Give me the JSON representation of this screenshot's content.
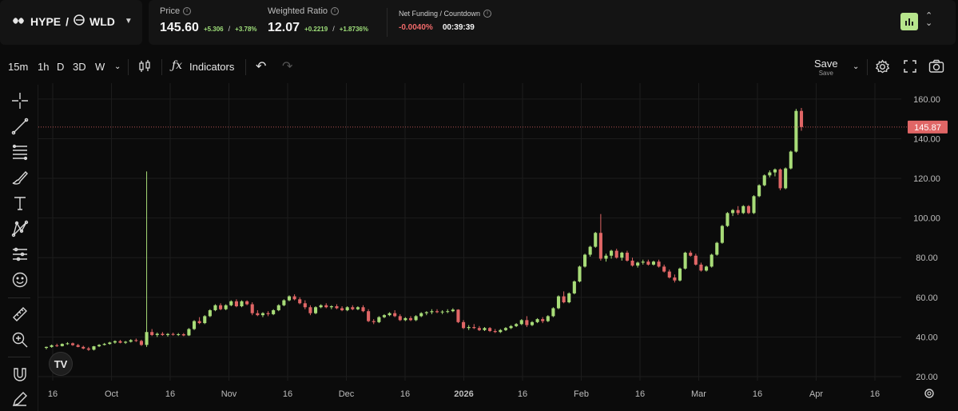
{
  "header": {
    "base": "HYPE",
    "separator": "/",
    "quote": "WLD",
    "price": {
      "label": "Price",
      "value": "145.60",
      "change_abs": "+5.306",
      "change_pct": "+3.78%"
    },
    "weighted": {
      "label": "Weighted Ratio",
      "value": "12.07",
      "change_abs": "+0.2219",
      "change_pct": "+1.8736%"
    },
    "funding": {
      "label": "Net Funding / Countdown",
      "rate": "-0.0040%",
      "countdown": "00:39:39"
    },
    "slash": "/"
  },
  "toolbar": {
    "intervals": [
      "15m",
      "1h",
      "D",
      "3D",
      "W"
    ],
    "indicators_label": "Indicators",
    "save_label": "Save",
    "save_sub": "Save"
  },
  "tv_logo": "TV",
  "colors": {
    "up": "#a8dc78",
    "down": "#e06666",
    "accent": "#b7e58c",
    "bg": "#0b0b0b",
    "grid": "#1c1c1c"
  },
  "chart_data": {
    "type": "candlestick",
    "last_price_label": "145.87",
    "last_price": 145.87,
    "y_ticks": [
      20,
      40,
      60,
      80,
      100,
      120,
      140,
      160
    ],
    "y_tick_labels": [
      "20.00",
      "40.00",
      "60.00",
      "80.00",
      "100.00",
      "120.00",
      "140.00",
      "160.00"
    ],
    "ylim": [
      18,
      168
    ],
    "x_labels": [
      "16",
      "Oct",
      "16",
      "Nov",
      "16",
      "Dec",
      "16",
      "2026",
      "16",
      "Feb",
      "16",
      "Mar",
      "16",
      "Apr",
      "16"
    ],
    "x_label_bold": [
      false,
      false,
      false,
      false,
      false,
      false,
      false,
      true,
      false,
      false,
      false,
      false,
      false,
      false,
      false
    ],
    "series": [
      [
        34.5,
        35.2,
        33.8,
        35.0
      ],
      [
        35.0,
        36.2,
        34.6,
        35.8
      ],
      [
        35.8,
        36.6,
        35.0,
        35.4
      ],
      [
        35.4,
        36.8,
        35.2,
        36.5
      ],
      [
        36.5,
        37.4,
        36.0,
        36.8
      ],
      [
        36.8,
        37.2,
        35.5,
        35.9
      ],
      [
        35.9,
        36.5,
        34.8,
        35.0
      ],
      [
        35.0,
        35.6,
        33.8,
        34.2
      ],
      [
        34.2,
        35.0,
        33.0,
        33.6
      ],
      [
        33.6,
        35.5,
        33.2,
        35.3
      ],
      [
        35.3,
        36.4,
        34.9,
        36.0
      ],
      [
        36.0,
        37.0,
        35.7,
        36.5
      ],
      [
        36.5,
        37.6,
        36.1,
        37.2
      ],
      [
        37.2,
        38.3,
        36.6,
        37.9
      ],
      [
        37.9,
        38.5,
        36.8,
        37.1
      ],
      [
        37.1,
        38.0,
        36.5,
        37.6
      ],
      [
        37.6,
        38.9,
        37.2,
        38.4
      ],
      [
        38.4,
        39.2,
        37.5,
        38.0
      ],
      [
        38.0,
        38.6,
        35.5,
        36.0
      ],
      [
        36.0,
        123.5,
        35.0,
        42.5
      ],
      [
        42.5,
        44.0,
        40.5,
        41.0
      ],
      [
        41.0,
        42.3,
        40.0,
        41.6
      ],
      [
        41.6,
        42.5,
        40.6,
        41.0
      ],
      [
        41.0,
        42.0,
        40.2,
        41.5
      ],
      [
        41.5,
        42.2,
        40.7,
        41.2
      ],
      [
        41.2,
        42.0,
        40.5,
        41.4
      ],
      [
        41.4,
        42.0,
        40.4,
        40.8
      ],
      [
        40.8,
        44.5,
        40.5,
        44.0
      ],
      [
        44.0,
        48.5,
        43.5,
        48.0
      ],
      [
        48.0,
        50.0,
        46.5,
        47.0
      ],
      [
        47.0,
        51.0,
        46.5,
        50.5
      ],
      [
        50.5,
        54.0,
        50.0,
        53.5
      ],
      [
        53.5,
        56.5,
        53.0,
        56.0
      ],
      [
        56.0,
        57.0,
        53.5,
        54.0
      ],
      [
        54.0,
        56.5,
        53.5,
        56.0
      ],
      [
        56.0,
        58.5,
        55.5,
        58.0
      ],
      [
        58.0,
        59.0,
        55.0,
        55.5
      ],
      [
        55.5,
        58.5,
        55.0,
        58.0
      ],
      [
        58.0,
        58.5,
        56.0,
        56.5
      ],
      [
        56.5,
        57.5,
        51.0,
        52.0
      ],
      [
        52.0,
        53.5,
        50.5,
        51.0
      ],
      [
        51.0,
        52.5,
        50.0,
        52.0
      ],
      [
        52.0,
        53.0,
        50.5,
        51.5
      ],
      [
        51.5,
        54.0,
        51.0,
        53.5
      ],
      [
        53.5,
        56.5,
        53.0,
        56.0
      ],
      [
        56.0,
        59.0,
        55.5,
        58.5
      ],
      [
        58.5,
        61.0,
        58.0,
        60.5
      ],
      [
        60.5,
        61.5,
        58.5,
        59.0
      ],
      [
        59.0,
        60.0,
        56.5,
        57.0
      ],
      [
        57.0,
        58.5,
        54.0,
        55.0
      ],
      [
        55.0,
        56.0,
        51.0,
        52.0
      ],
      [
        52.0,
        55.5,
        51.5,
        55.0
      ],
      [
        55.0,
        56.5,
        54.5,
        56.0
      ],
      [
        56.0,
        57.0,
        54.5,
        55.0
      ],
      [
        55.0,
        56.0,
        54.0,
        55.5
      ],
      [
        55.5,
        56.5,
        54.0,
        54.5
      ],
      [
        54.5,
        55.5,
        53.0,
        53.5
      ],
      [
        53.5,
        55.5,
        53.0,
        55.0
      ],
      [
        55.0,
        56.0,
        53.5,
        54.0
      ],
      [
        54.0,
        55.5,
        53.5,
        55.0
      ],
      [
        55.0,
        56.0,
        52.5,
        53.0
      ],
      [
        53.0,
        54.0,
        47.5,
        48.0
      ],
      [
        48.0,
        49.0,
        46.5,
        47.5
      ],
      [
        47.5,
        50.5,
        47.0,
        50.0
      ],
      [
        50.0,
        51.5,
        49.5,
        51.0
      ],
      [
        51.0,
        52.5,
        50.5,
        52.0
      ],
      [
        52.0,
        53.5,
        50.0,
        50.5
      ],
      [
        50.5,
        51.5,
        48.0,
        48.5
      ],
      [
        48.5,
        50.0,
        48.0,
        49.5
      ],
      [
        49.5,
        50.5,
        48.0,
        48.5
      ],
      [
        48.5,
        51.0,
        48.0,
        50.5
      ],
      [
        50.5,
        52.5,
        50.0,
        52.0
      ],
      [
        52.0,
        53.0,
        51.0,
        52.5
      ],
      [
        52.5,
        54.0,
        51.5,
        53.0
      ],
      [
        53.0,
        54.0,
        52.0,
        52.5
      ],
      [
        52.5,
        53.5,
        51.5,
        52.8
      ],
      [
        52.8,
        54.0,
        52.0,
        53.0
      ],
      [
        53.0,
        54.5,
        52.5,
        53.8
      ],
      [
        53.8,
        54.0,
        47.0,
        47.5
      ],
      [
        47.5,
        48.5,
        44.0,
        44.5
      ],
      [
        44.5,
        46.0,
        43.5,
        45.0
      ],
      [
        45.0,
        46.5,
        44.0,
        44.5
      ],
      [
        44.5,
        45.5,
        43.0,
        43.5
      ],
      [
        43.5,
        45.0,
        43.0,
        44.5
      ],
      [
        44.5,
        45.0,
        42.5,
        43.0
      ],
      [
        43.0,
        44.0,
        42.0,
        42.5
      ],
      [
        42.5,
        44.0,
        42.0,
        43.5
      ],
      [
        43.5,
        45.0,
        43.0,
        44.5
      ],
      [
        44.5,
        46.0,
        44.0,
        45.5
      ],
      [
        45.5,
        47.0,
        45.0,
        46.5
      ],
      [
        46.5,
        49.0,
        46.0,
        48.5
      ],
      [
        48.5,
        50.5,
        45.0,
        46.0
      ],
      [
        46.0,
        48.0,
        45.5,
        47.5
      ],
      [
        47.5,
        49.5,
        47.0,
        49.0
      ],
      [
        49.0,
        50.0,
        47.0,
        48.0
      ],
      [
        48.0,
        51.0,
        47.5,
        50.5
      ],
      [
        50.5,
        55.0,
        50.0,
        54.5
      ],
      [
        54.5,
        61.0,
        54.0,
        60.5
      ],
      [
        60.5,
        63.0,
        57.0,
        57.5
      ],
      [
        57.5,
        62.5,
        57.0,
        62.0
      ],
      [
        62.0,
        68.5,
        61.5,
        68.0
      ],
      [
        68.0,
        76.0,
        67.5,
        75.5
      ],
      [
        75.5,
        82.0,
        75.0,
        81.5
      ],
      [
        81.5,
        86.0,
        80.5,
        85.5
      ],
      [
        85.5,
        93.0,
        85.0,
        92.5
      ],
      [
        92.5,
        102.0,
        78.5,
        79.5
      ],
      [
        79.5,
        82.0,
        78.0,
        81.0
      ],
      [
        81.0,
        84.0,
        79.5,
        83.5
      ],
      [
        83.5,
        84.5,
        79.5,
        80.0
      ],
      [
        80.0,
        83.0,
        78.5,
        82.5
      ],
      [
        82.5,
        83.5,
        78.0,
        78.5
      ],
      [
        78.5,
        80.0,
        75.5,
        76.0
      ],
      [
        76.0,
        78.0,
        75.0,
        77.5
      ],
      [
        77.5,
        79.0,
        76.5,
        78.0
      ],
      [
        78.0,
        79.0,
        76.0,
        76.5
      ],
      [
        76.5,
        78.5,
        76.0,
        78.0
      ],
      [
        78.0,
        79.0,
        75.0,
        75.5
      ],
      [
        75.5,
        76.5,
        72.5,
        73.0
      ],
      [
        73.0,
        74.0,
        69.5,
        70.0
      ],
      [
        70.0,
        71.5,
        67.5,
        68.5
      ],
      [
        68.5,
        75.0,
        68.0,
        74.5
      ],
      [
        74.5,
        83.0,
        74.0,
        82.5
      ],
      [
        82.5,
        83.5,
        80.5,
        81.0
      ],
      [
        81.0,
        82.0,
        76.0,
        76.5
      ],
      [
        76.5,
        77.5,
        73.0,
        73.5
      ],
      [
        73.5,
        76.0,
        73.0,
        75.5
      ],
      [
        75.5,
        82.0,
        75.0,
        81.5
      ],
      [
        81.5,
        88.0,
        81.0,
        87.5
      ],
      [
        87.5,
        96.5,
        87.0,
        96.0
      ],
      [
        96.0,
        103.0,
        95.5,
        102.5
      ],
      [
        102.5,
        104.5,
        101.0,
        104.0
      ],
      [
        104.0,
        106.0,
        101.5,
        102.5
      ],
      [
        102.5,
        106.5,
        102.0,
        106.0
      ],
      [
        106.0,
        106.5,
        102.0,
        102.5
      ],
      [
        102.5,
        111.5,
        102.0,
        111.0
      ],
      [
        111.0,
        117.0,
        110.5,
        116.5
      ],
      [
        116.5,
        122.0,
        116.0,
        121.5
      ],
      [
        121.5,
        124.0,
        120.5,
        123.0
      ],
      [
        123.0,
        125.0,
        121.0,
        124.5
      ],
      [
        124.5,
        125.0,
        114.0,
        115.0
      ],
      [
        115.0,
        125.5,
        114.5,
        125.0
      ],
      [
        125.0,
        134.0,
        124.5,
        133.5
      ],
      [
        133.5,
        155.0,
        133.0,
        154.0
      ],
      [
        154.0,
        155.5,
        144.0,
        145.9
      ]
    ]
  }
}
